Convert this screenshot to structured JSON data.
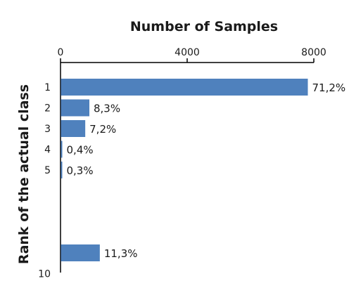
{
  "chart_data": {
    "type": "bar",
    "orientation": "horizontal",
    "title": "Number of Samples",
    "ylabel": "Rank of the actual class",
    "xlabel": "",
    "x_axis_position": "top",
    "xlim": [
      0,
      8000
    ],
    "x_ticks": [
      "0",
      "4000",
      "8000"
    ],
    "grid": false,
    "bar_color": "#4f81bd",
    "rank_axis": {
      "min": 1,
      "max": 10,
      "tick_labels": [
        "1",
        "2",
        "3",
        "4",
        "5",
        "10"
      ]
    },
    "bars": [
      {
        "category": "1",
        "rank": 1,
        "value": 7800,
        "label": "71,2%"
      },
      {
        "category": "2",
        "rank": 2,
        "value": 900,
        "label": "8,3%"
      },
      {
        "category": "3",
        "rank": 3,
        "value": 770,
        "label": "7,2%"
      },
      {
        "category": "4",
        "rank": 4,
        "value": 45,
        "label": "0,4%"
      },
      {
        "category": "5",
        "rank": 5,
        "value": 35,
        "label": "0,3%"
      },
      {
        "category": "",
        "rank": 9,
        "value": 1230,
        "label": "11,3%"
      }
    ]
  }
}
